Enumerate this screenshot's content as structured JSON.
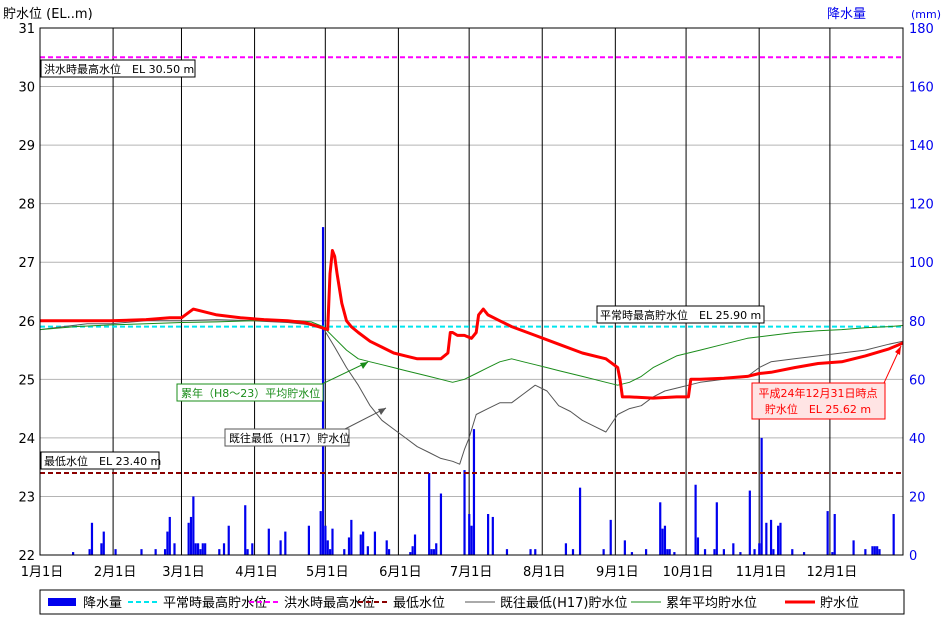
{
  "chart_data": {
    "type": "line",
    "left_axis": {
      "label": "貯水位 (EL..m)",
      "min": 22,
      "max": 31,
      "ticks": [
        "22",
        "23",
        "24",
        "25",
        "26",
        "27",
        "28",
        "29",
        "30",
        "31"
      ]
    },
    "right_axis": {
      "label": "降水量",
      "unit": "(mm)",
      "min": 0,
      "max": 180,
      "ticks": [
        "0",
        "20",
        "40",
        "60",
        "80",
        "100",
        "120",
        "140",
        "160",
        "180"
      ]
    },
    "x_axis": {
      "min": 0,
      "max": 366,
      "ticks": [
        {
          "x": 0,
          "label": "1月1日"
        },
        {
          "x": 31,
          "label": "2月1日"
        },
        {
          "x": 60,
          "label": "3月1日"
        },
        {
          "x": 91,
          "label": "4月1日"
        },
        {
          "x": 121,
          "label": "5月1日"
        },
        {
          "x": 152,
          "label": "6月1日"
        },
        {
          "x": 182,
          "label": "7月1日"
        },
        {
          "x": 213,
          "label": "8月1日"
        },
        {
          "x": 244,
          "label": "9月1日"
        },
        {
          "x": 274,
          "label": "10月1日"
        },
        {
          "x": 305,
          "label": "11月1日"
        },
        {
          "x": 335,
          "label": "12月1日"
        }
      ]
    },
    "reference_lines": [
      {
        "name": "平常時最高貯水位",
        "value": 25.9,
        "color": "#00e5ee",
        "style": "dashed"
      },
      {
        "name": "洪水時最高水位",
        "value": 30.5,
        "color": "#ff00ff",
        "style": "dashed"
      },
      {
        "name": "最低水位",
        "value": 23.4,
        "color": "#8b0000",
        "style": "dashed"
      }
    ],
    "series": [
      {
        "name": "既往最低(H17)貯水位",
        "color": "#555555",
        "width": 1,
        "x": [
          0,
          10,
          20,
          30,
          45,
          60,
          75,
          90,
          105,
          115,
          120,
          125,
          130,
          135,
          140,
          145,
          150,
          155,
          160,
          165,
          170,
          175,
          178,
          180,
          182,
          185,
          190,
          195,
          200,
          205,
          210,
          215,
          220,
          225,
          230,
          235,
          240,
          245,
          250,
          255,
          260,
          265,
          270,
          275,
          280,
          290,
          300,
          305,
          310,
          320,
          330,
          340,
          350,
          360,
          366
        ],
        "y": [
          25.85,
          25.9,
          25.95,
          25.95,
          26.0,
          26.0,
          26.02,
          26.0,
          25.97,
          25.93,
          25.88,
          25.55,
          25.2,
          24.9,
          24.55,
          24.3,
          24.15,
          24.0,
          23.85,
          23.75,
          23.65,
          23.6,
          23.55,
          23.8,
          24.0,
          24.4,
          24.5,
          24.6,
          24.6,
          24.75,
          24.9,
          24.8,
          24.55,
          24.45,
          24.3,
          24.2,
          24.1,
          24.4,
          24.5,
          24.55,
          24.7,
          24.8,
          24.85,
          24.9,
          24.95,
          25.0,
          25.05,
          25.2,
          25.3,
          25.35,
          25.4,
          25.45,
          25.5,
          25.6,
          25.65
        ]
      },
      {
        "name": "累年平均貯水位",
        "color": "#1a8c1a",
        "width": 1,
        "x": [
          0,
          15,
          30,
          45,
          60,
          75,
          90,
          105,
          110,
          115,
          120,
          125,
          130,
          135,
          140,
          145,
          150,
          155,
          160,
          165,
          170,
          175,
          180,
          185,
          190,
          195,
          200,
          205,
          210,
          215,
          220,
          225,
          230,
          235,
          240,
          245,
          250,
          255,
          260,
          265,
          270,
          275,
          280,
          290,
          300,
          310,
          320,
          330,
          340,
          350,
          360,
          366
        ],
        "y": [
          25.85,
          25.9,
          25.93,
          25.95,
          25.97,
          25.98,
          26.0,
          26.0,
          26.0,
          25.98,
          25.9,
          25.7,
          25.5,
          25.35,
          25.3,
          25.25,
          25.2,
          25.15,
          25.1,
          25.05,
          25.0,
          24.95,
          25.0,
          25.1,
          25.2,
          25.3,
          25.35,
          25.3,
          25.25,
          25.2,
          25.15,
          25.1,
          25.05,
          25.0,
          24.95,
          24.9,
          24.95,
          25.05,
          25.2,
          25.3,
          25.4,
          25.45,
          25.5,
          25.6,
          25.7,
          25.75,
          25.8,
          25.83,
          25.85,
          25.88,
          25.9,
          25.92
        ]
      },
      {
        "name": "貯水位",
        "color": "#ff0000",
        "width": 3,
        "x": [
          0,
          15,
          30,
          45,
          55,
          60,
          65,
          75,
          85,
          95,
          105,
          112,
          118,
          122,
          123,
          124,
          125,
          126,
          128,
          130,
          132,
          135,
          140,
          145,
          150,
          155,
          160,
          165,
          170,
          173,
          174,
          175,
          177,
          180,
          183,
          185,
          186,
          188,
          190,
          195,
          200,
          210,
          220,
          230,
          240,
          245,
          246,
          247,
          250,
          260,
          270,
          275,
          276,
          280,
          290,
          300,
          305,
          310,
          320,
          330,
          340,
          350,
          360,
          366
        ],
        "y": [
          26.0,
          26.0,
          26.0,
          26.02,
          26.05,
          26.05,
          26.2,
          26.1,
          26.05,
          26.02,
          26.0,
          25.97,
          25.9,
          25.85,
          26.8,
          27.2,
          27.1,
          26.8,
          26.3,
          26.0,
          25.9,
          25.8,
          25.65,
          25.55,
          25.45,
          25.4,
          25.35,
          25.35,
          25.35,
          25.45,
          25.8,
          25.8,
          25.75,
          25.75,
          25.7,
          25.8,
          26.1,
          26.2,
          26.1,
          26.0,
          25.9,
          25.75,
          25.6,
          25.45,
          25.35,
          25.2,
          25.0,
          24.7,
          24.7,
          24.68,
          24.7,
          24.7,
          25.0,
          25.0,
          25.02,
          25.05,
          25.1,
          25.12,
          25.2,
          25.27,
          25.3,
          25.4,
          25.52,
          25.62
        ]
      }
    ],
    "rainfall": {
      "name": "降水量",
      "color": "#0000ee",
      "x": [
        14,
        21,
        22,
        26,
        27,
        32,
        43,
        49,
        53,
        54,
        55,
        57,
        63,
        64,
        65,
        66,
        67,
        68,
        69,
        70,
        76,
        78,
        80,
        87,
        88,
        90,
        97,
        102,
        104,
        114,
        119,
        120,
        121,
        122,
        123,
        124,
        129,
        131,
        132,
        136,
        137,
        139,
        142,
        147,
        148,
        157,
        158,
        159,
        165,
        166,
        167,
        168,
        170,
        180,
        182,
        183,
        184,
        190,
        192,
        198,
        208,
        210,
        223,
        226,
        229,
        239,
        242,
        248,
        251,
        257,
        263,
        264,
        265,
        266,
        267,
        269,
        278,
        279,
        282,
        286,
        287,
        290,
        294,
        297,
        301,
        303,
        305,
        306,
        308,
        310,
        311,
        313,
        314,
        319,
        324,
        334,
        336,
        337,
        345,
        350,
        353,
        354,
        355,
        356,
        362
      ],
      "y": [
        1,
        2,
        11,
        4,
        8,
        2,
        2,
        2,
        2,
        8,
        13,
        4,
        11,
        13,
        20,
        4,
        4,
        2,
        4,
        4,
        2,
        4,
        10,
        17,
        2,
        4,
        9,
        5,
        8,
        10,
        15,
        112,
        10,
        5,
        2,
        9,
        2,
        6,
        12,
        7,
        8,
        3,
        8,
        5,
        2,
        1,
        3,
        7,
        28,
        2,
        2,
        4,
        21,
        29,
        14,
        10,
        43,
        14,
        13,
        2,
        2,
        2,
        4,
        2,
        23,
        2,
        12,
        5,
        1,
        2,
        18,
        9,
        10,
        2,
        2,
        1,
        24,
        6,
        2,
        2,
        18,
        2,
        4,
        1,
        22,
        2,
        4,
        40,
        11,
        12,
        2,
        10,
        11,
        2,
        1,
        15,
        1,
        14,
        5,
        2,
        3,
        3,
        3,
        2,
        14
      ]
    },
    "legend": [
      {
        "name": "降水量",
        "kind": "bar",
        "color": "#0000ee"
      },
      {
        "name": "平常時最高貯水位",
        "kind": "dashed",
        "color": "#00e5ee"
      },
      {
        "name": "洪水時最高水位",
        "kind": "dashed",
        "color": "#ff00ff"
      },
      {
        "name": "最低水位",
        "kind": "dashed",
        "color": "#8b0000"
      },
      {
        "name": "既往最低(H17)貯水位",
        "kind": "line",
        "color": "#555555"
      },
      {
        "name": "累年平均貯水位",
        "kind": "line",
        "color": "#1a8c1a"
      },
      {
        "name": "貯水位",
        "kind": "thick",
        "color": "#ff0000"
      }
    ],
    "annotations": {
      "flood_level": "洪水時最高水位　EL 30.50 m",
      "normal_level": "平常時最高貯水位　EL 25.90 m",
      "min_level": "最低水位　EL 23.40 m",
      "average": "累年（H8〜23）平均貯水位",
      "lowest": "既往最低（H17）貯水位",
      "current_line1": "平成24年12月31日時点",
      "current_line2": "貯水位　EL 25.62 m"
    },
    "grid": true
  }
}
